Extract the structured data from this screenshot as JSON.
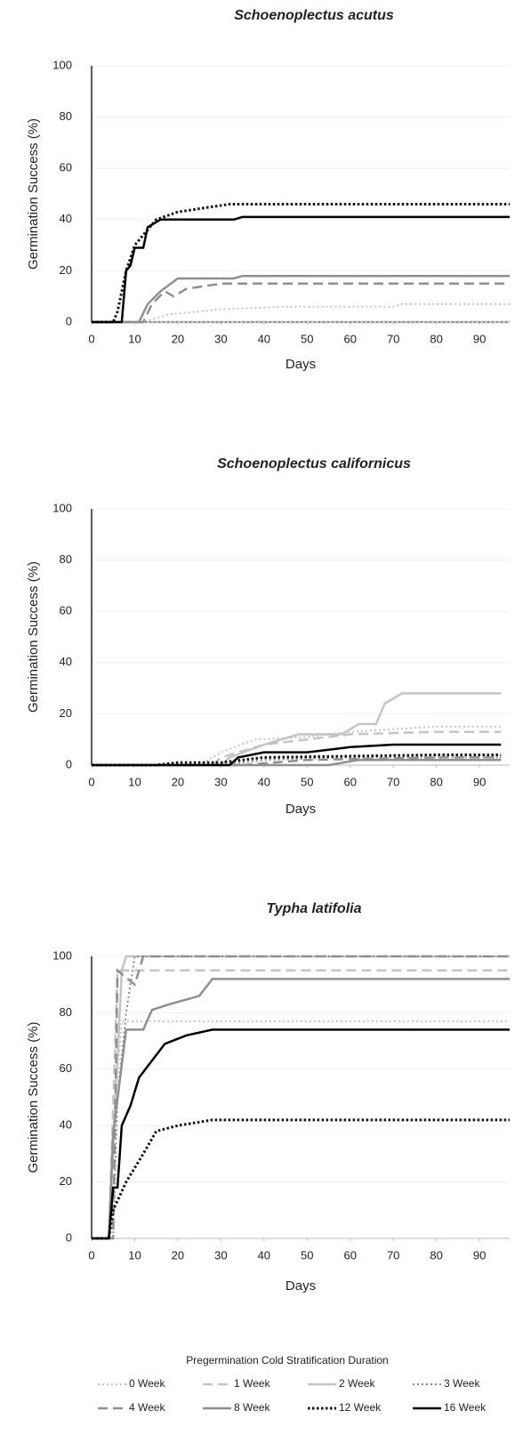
{
  "chart_data": [
    {
      "type": "line",
      "title": "Schoenoplectus acutus",
      "xlabel": "Days",
      "ylabel": "Germination Success (%)",
      "xlim": [
        0,
        97
      ],
      "ylim": [
        0,
        100
      ],
      "xticks": [
        0,
        10,
        20,
        30,
        40,
        50,
        60,
        70,
        80,
        90
      ],
      "yticks": [
        0,
        20,
        40,
        60,
        80,
        100
      ],
      "grid": true,
      "series": [
        {
          "color": "#c4c4c4",
          "dash": "dotted",
          "x": [
            0,
            12,
            18,
            30,
            45,
            70,
            72,
            97
          ],
          "values": [
            0,
            0,
            3,
            5,
            6,
            6,
            7,
            7
          ]
        },
        {
          "color": "#c4c4c4",
          "dash": "dashed",
          "x": [
            0,
            97
          ],
          "values": [
            0,
            0
          ]
        },
        {
          "color": "#c4c4c4",
          "dash": "solid",
          "x": [
            0,
            97
          ],
          "values": [
            0,
            0
          ]
        },
        {
          "color": "#8a8a8a",
          "dash": "dotted",
          "x": [
            0,
            97
          ],
          "values": [
            0,
            0
          ]
        },
        {
          "color": "#8f8f8f",
          "dash": "dashed",
          "x": [
            0,
            12,
            14,
            17,
            19,
            22,
            30,
            97
          ],
          "values": [
            0,
            0,
            7,
            12,
            10,
            13,
            15,
            15
          ]
        },
        {
          "color": "#8f8f8f",
          "dash": "solid",
          "x": [
            0,
            11,
            13,
            16,
            20,
            33,
            35,
            97
          ],
          "values": [
            0,
            0,
            7,
            12,
            17,
            17,
            18,
            18
          ]
        },
        {
          "color": "#111111",
          "dash": "heavydot",
          "x": [
            0,
            5,
            6,
            8,
            10,
            15,
            20,
            32,
            97
          ],
          "values": [
            0,
            0,
            4,
            20,
            30,
            40,
            43,
            46,
            46
          ]
        },
        {
          "color": "#000000",
          "dash": "solid",
          "x": [
            0,
            7,
            8,
            9,
            10,
            12,
            13,
            16,
            33,
            35,
            97
          ],
          "values": [
            0,
            0,
            20,
            22,
            29,
            29,
            37,
            40,
            40,
            41,
            41
          ]
        }
      ]
    },
    {
      "type": "line",
      "title": "Schoenoplectus californicus",
      "xlabel": "Days",
      "ylabel": "Germination Success (%)",
      "xlim": [
        0,
        97
      ],
      "ylim": [
        0,
        100
      ],
      "xticks": [
        0,
        10,
        20,
        30,
        40,
        50,
        60,
        70,
        80,
        90
      ],
      "yticks": [
        0,
        20,
        40,
        60,
        80,
        100
      ],
      "grid": true,
      "series": [
        {
          "color": "#c4c4c4",
          "dash": "dotted",
          "x": [
            0,
            25,
            30,
            38,
            50,
            60,
            80,
            95
          ],
          "values": [
            0,
            0,
            5,
            10,
            11,
            13,
            15,
            15
          ]
        },
        {
          "color": "#c4c4c4",
          "dash": "dashed",
          "x": [
            0,
            28,
            30,
            40,
            50,
            60,
            80,
            95
          ],
          "values": [
            0,
            0,
            3,
            8,
            10,
            12,
            13,
            13
          ]
        },
        {
          "color": "#c4c4c4",
          "dash": "solid",
          "x": [
            0,
            30,
            32,
            40,
            48,
            58,
            62,
            66,
            68,
            72,
            95
          ],
          "values": [
            0,
            0,
            3,
            8,
            12,
            12,
            16,
            16,
            24,
            28,
            28
          ]
        },
        {
          "color": "#8a8a8a",
          "dash": "dotted",
          "x": [
            0,
            30,
            40,
            60,
            95
          ],
          "values": [
            0,
            0,
            2,
            3,
            3
          ]
        },
        {
          "color": "#8f8f8f",
          "dash": "dashed",
          "x": [
            0,
            35,
            50,
            80,
            95
          ],
          "values": [
            0,
            0,
            2,
            3,
            3
          ]
        },
        {
          "color": "#8f8f8f",
          "dash": "solid",
          "x": [
            0,
            55,
            62,
            95
          ],
          "values": [
            0,
            0,
            2,
            2
          ]
        },
        {
          "color": "#111111",
          "dash": "heavydot",
          "x": [
            0,
            15,
            20,
            30,
            40,
            80,
            95
          ],
          "values": [
            0,
            0,
            1,
            1,
            3,
            4,
            4
          ]
        },
        {
          "color": "#000000",
          "dash": "solid",
          "x": [
            0,
            32,
            34,
            40,
            50,
            60,
            70,
            95
          ],
          "values": [
            0,
            0,
            3,
            5,
            5,
            7,
            8,
            8
          ]
        }
      ]
    },
    {
      "type": "line",
      "title": "Typha latifolia",
      "xlabel": "Days",
      "ylabel": "Germination Success (%)",
      "xlim": [
        0,
        97
      ],
      "ylim": [
        0,
        100
      ],
      "xticks": [
        0,
        10,
        20,
        30,
        40,
        50,
        60,
        70,
        80,
        90
      ],
      "yticks": [
        0,
        20,
        40,
        60,
        80,
        100
      ],
      "grid": true,
      "legend_title": "Pregermination Cold Stratification Duration",
      "series": [
        {
          "name": "0 Week",
          "color": "#c4c4c4",
          "dash": "dotted",
          "x": [
            0,
            4,
            5,
            7,
            97
          ],
          "values": [
            0,
            0,
            40,
            77,
            77
          ]
        },
        {
          "name": "1 Week",
          "color": "#c4c4c4",
          "dash": "dashed",
          "x": [
            0,
            4,
            6,
            8,
            97
          ],
          "values": [
            0,
            0,
            95,
            95,
            95
          ]
        },
        {
          "name": "2 Week",
          "color": "#c4c4c4",
          "dash": "solid",
          "x": [
            0,
            4,
            7,
            8,
            97
          ],
          "values": [
            0,
            0,
            95,
            100,
            100
          ]
        },
        {
          "name": "3 Week",
          "color": "#8a8a8a",
          "dash": "dotted",
          "x": [
            0,
            5,
            6,
            8,
            10,
            97
          ],
          "values": [
            0,
            0,
            50,
            80,
            100,
            100
          ]
        },
        {
          "name": "4 Week",
          "color": "#8f8f8f",
          "dash": "dashed",
          "x": [
            0,
            5,
            6,
            10,
            12,
            97
          ],
          "values": [
            0,
            0,
            95,
            90,
            100,
            100
          ]
        },
        {
          "name": "8 Week",
          "color": "#8f8f8f",
          "dash": "solid",
          "x": [
            0,
            4,
            5,
            8,
            12,
            14,
            18,
            25,
            28,
            97
          ],
          "values": [
            0,
            0,
            37,
            74,
            74,
            81,
            83,
            86,
            92,
            92
          ]
        },
        {
          "name": "12 Week",
          "color": "#111111",
          "dash": "heavydot",
          "x": [
            0,
            4,
            5,
            8,
            12,
            15,
            20,
            28,
            97
          ],
          "values": [
            0,
            0,
            10,
            20,
            30,
            38,
            40,
            42,
            42
          ]
        },
        {
          "name": "16 Week",
          "color": "#000000",
          "dash": "solid",
          "x": [
            0,
            4,
            5,
            6,
            7,
            9,
            11,
            14,
            17,
            22,
            28,
            97
          ],
          "values": [
            0,
            0,
            18,
            18,
            40,
            47,
            57,
            63,
            69,
            72,
            74,
            74
          ]
        }
      ]
    }
  ]
}
